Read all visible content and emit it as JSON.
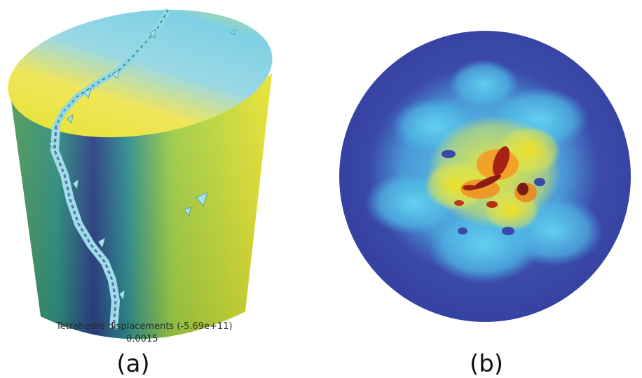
{
  "panel_a": {
    "overlay_title": "Tetrahedre displacements (-5.69e+11)",
    "overlay_value": "0.0015",
    "caption": "(a)"
  },
  "panel_b": {
    "caption": "(b)"
  },
  "colors": {
    "yellow": "#e6e327",
    "cyan": "#7fd8e8",
    "teal": "#1f9f8a",
    "navy": "#2a2f7a",
    "disk_blue": "#3d4aa6",
    "hot_red": "#8b1a10",
    "orange": "#f28c1e"
  }
}
